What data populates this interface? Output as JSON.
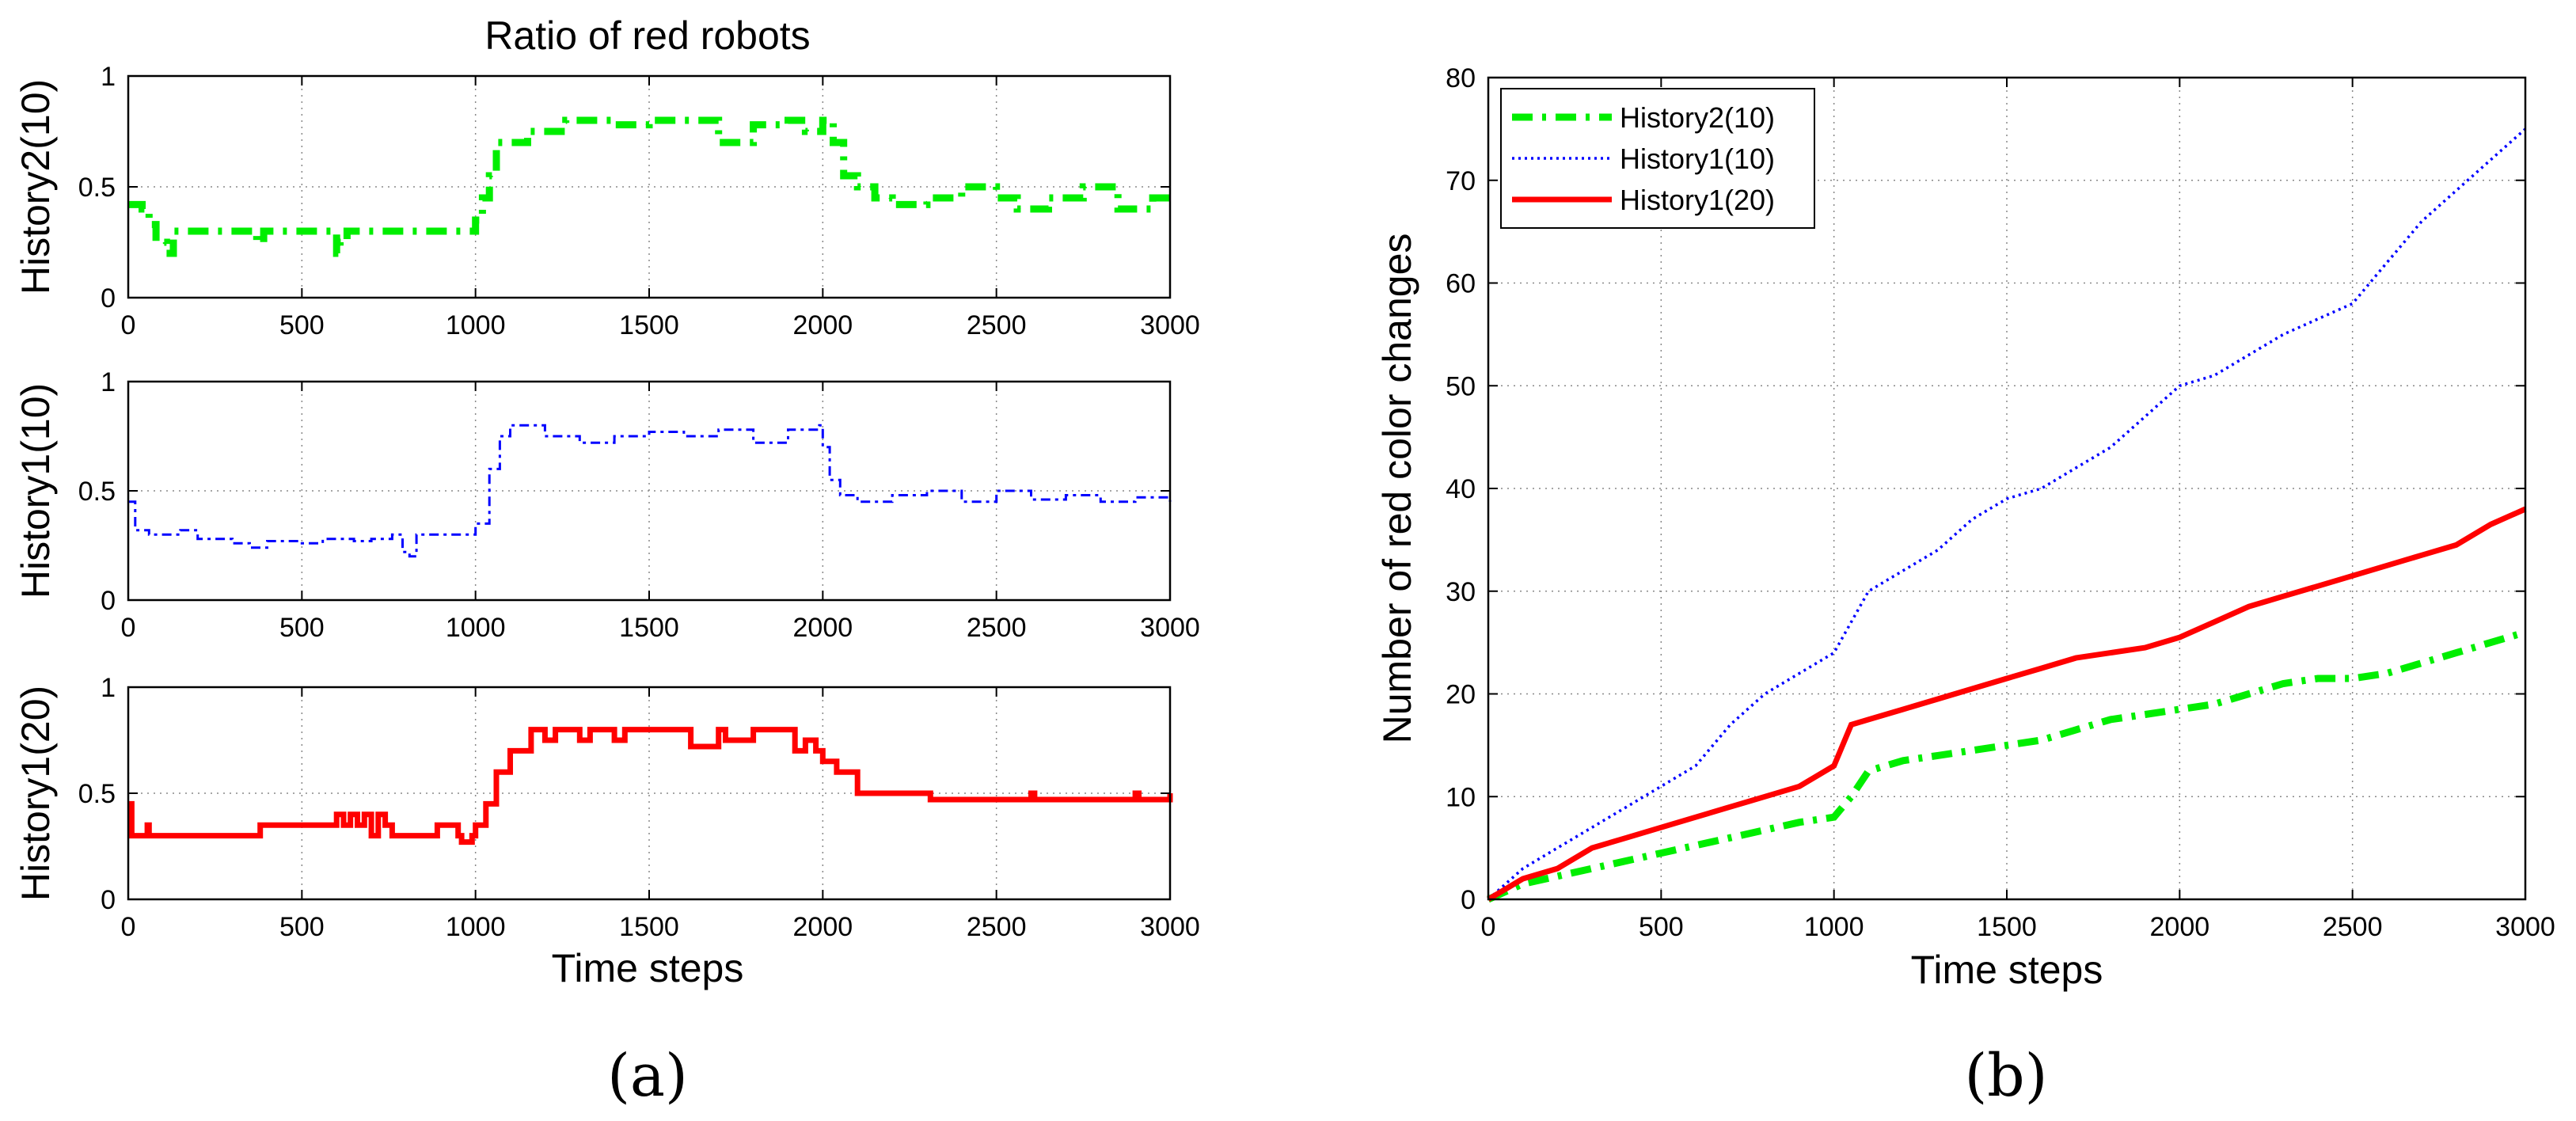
{
  "figure": {
    "panel_a": {
      "label": "(a)",
      "title": "Ratio of red robots",
      "xlabel": "Time steps"
    },
    "panel_b": {
      "label": "(b)"
    }
  },
  "chart_data": [
    {
      "type": "line",
      "ylabel": "History2(10)",
      "xlim": [
        0,
        3000
      ],
      "ylim": [
        0,
        1
      ],
      "xticks": [
        0,
        500,
        1000,
        1500,
        2000,
        2500,
        3000
      ],
      "yticks": [
        0,
        0.5,
        1
      ],
      "ytick_labels": [
        "0",
        "0.5",
        "1"
      ],
      "grid": true,
      "series": [
        {
          "color": "#00ee00",
          "style": "dash-dot",
          "x": [
            0,
            40,
            60,
            80,
            110,
            130,
            160,
            370,
            390,
            410,
            600,
            610,
            630,
            980,
            1000,
            1020,
            1040,
            1060,
            1090,
            1150,
            1200,
            1260,
            1300,
            1400,
            1500,
            1650,
            1700,
            1800,
            1900,
            1950,
            2000,
            2030,
            2060,
            2100,
            2150,
            2200,
            2300,
            2400,
            2500,
            2560,
            2650,
            2750,
            2850,
            2950,
            3000
          ],
          "y": [
            0.42,
            0.4,
            0.33,
            0.25,
            0.2,
            0.3,
            0.3,
            0.25,
            0.3,
            0.3,
            0.2,
            0.25,
            0.3,
            0.3,
            0.35,
            0.45,
            0.55,
            0.7,
            0.7,
            0.75,
            0.75,
            0.8,
            0.8,
            0.78,
            0.8,
            0.8,
            0.7,
            0.78,
            0.8,
            0.75,
            0.8,
            0.7,
            0.55,
            0.5,
            0.45,
            0.42,
            0.45,
            0.5,
            0.45,
            0.4,
            0.45,
            0.5,
            0.4,
            0.45,
            0.45
          ]
        }
      ]
    },
    {
      "type": "line",
      "ylabel": "History1(10)",
      "xlim": [
        0,
        3000
      ],
      "ylim": [
        0,
        1
      ],
      "xticks": [
        0,
        500,
        1000,
        1500,
        2000,
        2500,
        3000
      ],
      "yticks": [
        0,
        0.5,
        1
      ],
      "ytick_labels": [
        "0",
        "0.5",
        "1"
      ],
      "grid": true,
      "series": [
        {
          "color": "#0000ff",
          "style": "dash",
          "x": [
            0,
            20,
            60,
            150,
            200,
            300,
            350,
            400,
            500,
            560,
            650,
            700,
            760,
            790,
            810,
            830,
            880,
            980,
            1000,
            1040,
            1070,
            1100,
            1200,
            1300,
            1400,
            1500,
            1600,
            1700,
            1800,
            1900,
            1990,
            2000,
            2020,
            2050,
            2100,
            2200,
            2300,
            2400,
            2500,
            2600,
            2700,
            2800,
            2900,
            3000
          ],
          "y": [
            0.45,
            0.32,
            0.3,
            0.32,
            0.28,
            0.26,
            0.24,
            0.27,
            0.26,
            0.28,
            0.27,
            0.28,
            0.3,
            0.22,
            0.2,
            0.3,
            0.3,
            0.3,
            0.35,
            0.6,
            0.75,
            0.8,
            0.75,
            0.72,
            0.75,
            0.77,
            0.75,
            0.78,
            0.72,
            0.78,
            0.8,
            0.7,
            0.55,
            0.48,
            0.45,
            0.48,
            0.5,
            0.45,
            0.5,
            0.46,
            0.48,
            0.45,
            0.47,
            0.45
          ]
        }
      ]
    },
    {
      "type": "line",
      "ylabel": "History1(20)",
      "xlabel": "Time steps",
      "xlim": [
        0,
        3000
      ],
      "ylim": [
        0,
        1
      ],
      "xticks": [
        0,
        500,
        1000,
        1500,
        2000,
        2500,
        3000
      ],
      "yticks": [
        0,
        0.5,
        1
      ],
      "ytick_labels": [
        "0",
        "0.5",
        "1"
      ],
      "grid": true,
      "series": [
        {
          "color": "#ff0000",
          "style": "solid",
          "x": [
            0,
            10,
            50,
            55,
            60,
            370,
            380,
            590,
            600,
            620,
            640,
            660,
            680,
            700,
            720,
            740,
            760,
            880,
            890,
            950,
            960,
            990,
            1000,
            1030,
            1060,
            1100,
            1150,
            1160,
            1200,
            1230,
            1300,
            1330,
            1400,
            1430,
            1600,
            1620,
            1700,
            1720,
            1800,
            1900,
            1920,
            1950,
            1980,
            2000,
            2040,
            2100,
            2300,
            2310,
            2600,
            2610,
            2900,
            2910,
            3000
          ],
          "y": [
            0.45,
            0.3,
            0.3,
            0.35,
            0.3,
            0.3,
            0.35,
            0.35,
            0.4,
            0.35,
            0.4,
            0.35,
            0.4,
            0.3,
            0.4,
            0.35,
            0.3,
            0.3,
            0.35,
            0.3,
            0.27,
            0.3,
            0.35,
            0.45,
            0.6,
            0.7,
            0.7,
            0.8,
            0.75,
            0.8,
            0.75,
            0.8,
            0.75,
            0.8,
            0.8,
            0.72,
            0.8,
            0.75,
            0.8,
            0.8,
            0.7,
            0.75,
            0.7,
            0.65,
            0.6,
            0.5,
            0.5,
            0.47,
            0.5,
            0.47,
            0.5,
            0.47,
            0.5
          ]
        }
      ]
    },
    {
      "type": "line",
      "xlabel": "Time steps",
      "ylabel": "Number of red color changes",
      "xlim": [
        0,
        3000
      ],
      "ylim": [
        0,
        80
      ],
      "xticks": [
        0,
        500,
        1000,
        1500,
        2000,
        2500,
        3000
      ],
      "yticks": [
        0,
        10,
        20,
        30,
        40,
        50,
        60,
        70,
        80
      ],
      "grid": true,
      "legend_position": "top-left",
      "series": [
        {
          "name": "History2(10)",
          "color": "#00ee00",
          "style": "dash-dot",
          "x": [
            0,
            100,
            300,
            500,
            700,
            900,
            1000,
            1050,
            1100,
            1200,
            1300,
            1400,
            1500,
            1600,
            1700,
            1800,
            1900,
            2000,
            2100,
            2200,
            2300,
            2400,
            2500,
            2600,
            2700,
            2800,
            2900,
            3000
          ],
          "y": [
            0,
            1.5,
            3,
            4.5,
            6,
            7.5,
            8,
            10,
            12.5,
            13.5,
            14,
            14.5,
            15,
            15.5,
            16.5,
            17.5,
            18,
            18.5,
            19,
            20,
            21,
            21.5,
            21.5,
            22,
            23,
            24,
            25,
            26
          ]
        },
        {
          "name": "History1(10)",
          "color": "#0000ff",
          "style": "dotted",
          "x": [
            0,
            100,
            200,
            300,
            400,
            500,
            600,
            700,
            800,
            900,
            1000,
            1050,
            1100,
            1200,
            1300,
            1400,
            1500,
            1600,
            1700,
            1800,
            1900,
            2000,
            2100,
            2200,
            2300,
            2400,
            2500,
            2600,
            2700,
            2800,
            2900,
            3000
          ],
          "y": [
            0,
            3,
            5,
            7,
            9,
            11,
            13,
            17,
            20,
            22,
            24,
            27,
            30,
            32,
            34,
            37,
            39,
            40,
            42,
            44,
            47,
            50,
            51,
            53,
            55,
            56.5,
            58,
            62,
            66,
            69,
            72,
            75
          ]
        },
        {
          "name": "History1(20)",
          "color": "#ff0000",
          "style": "solid",
          "x": [
            0,
            100,
            200,
            300,
            400,
            500,
            600,
            700,
            800,
            900,
            1000,
            1050,
            1100,
            1200,
            1300,
            1400,
            1500,
            1600,
            1700,
            1800,
            1900,
            2000,
            2100,
            2200,
            2300,
            2400,
            2500,
            2600,
            2700,
            2800,
            2900,
            3000
          ],
          "y": [
            0,
            2,
            3,
            5,
            6,
            7,
            8,
            9,
            10,
            11,
            13,
            17,
            17.5,
            18.5,
            19.5,
            20.5,
            21.5,
            22.5,
            23.5,
            24,
            24.5,
            25.5,
            27,
            28.5,
            29.5,
            30.5,
            31.5,
            32.5,
            33.5,
            34.5,
            36.5,
            38
          ]
        }
      ]
    }
  ]
}
